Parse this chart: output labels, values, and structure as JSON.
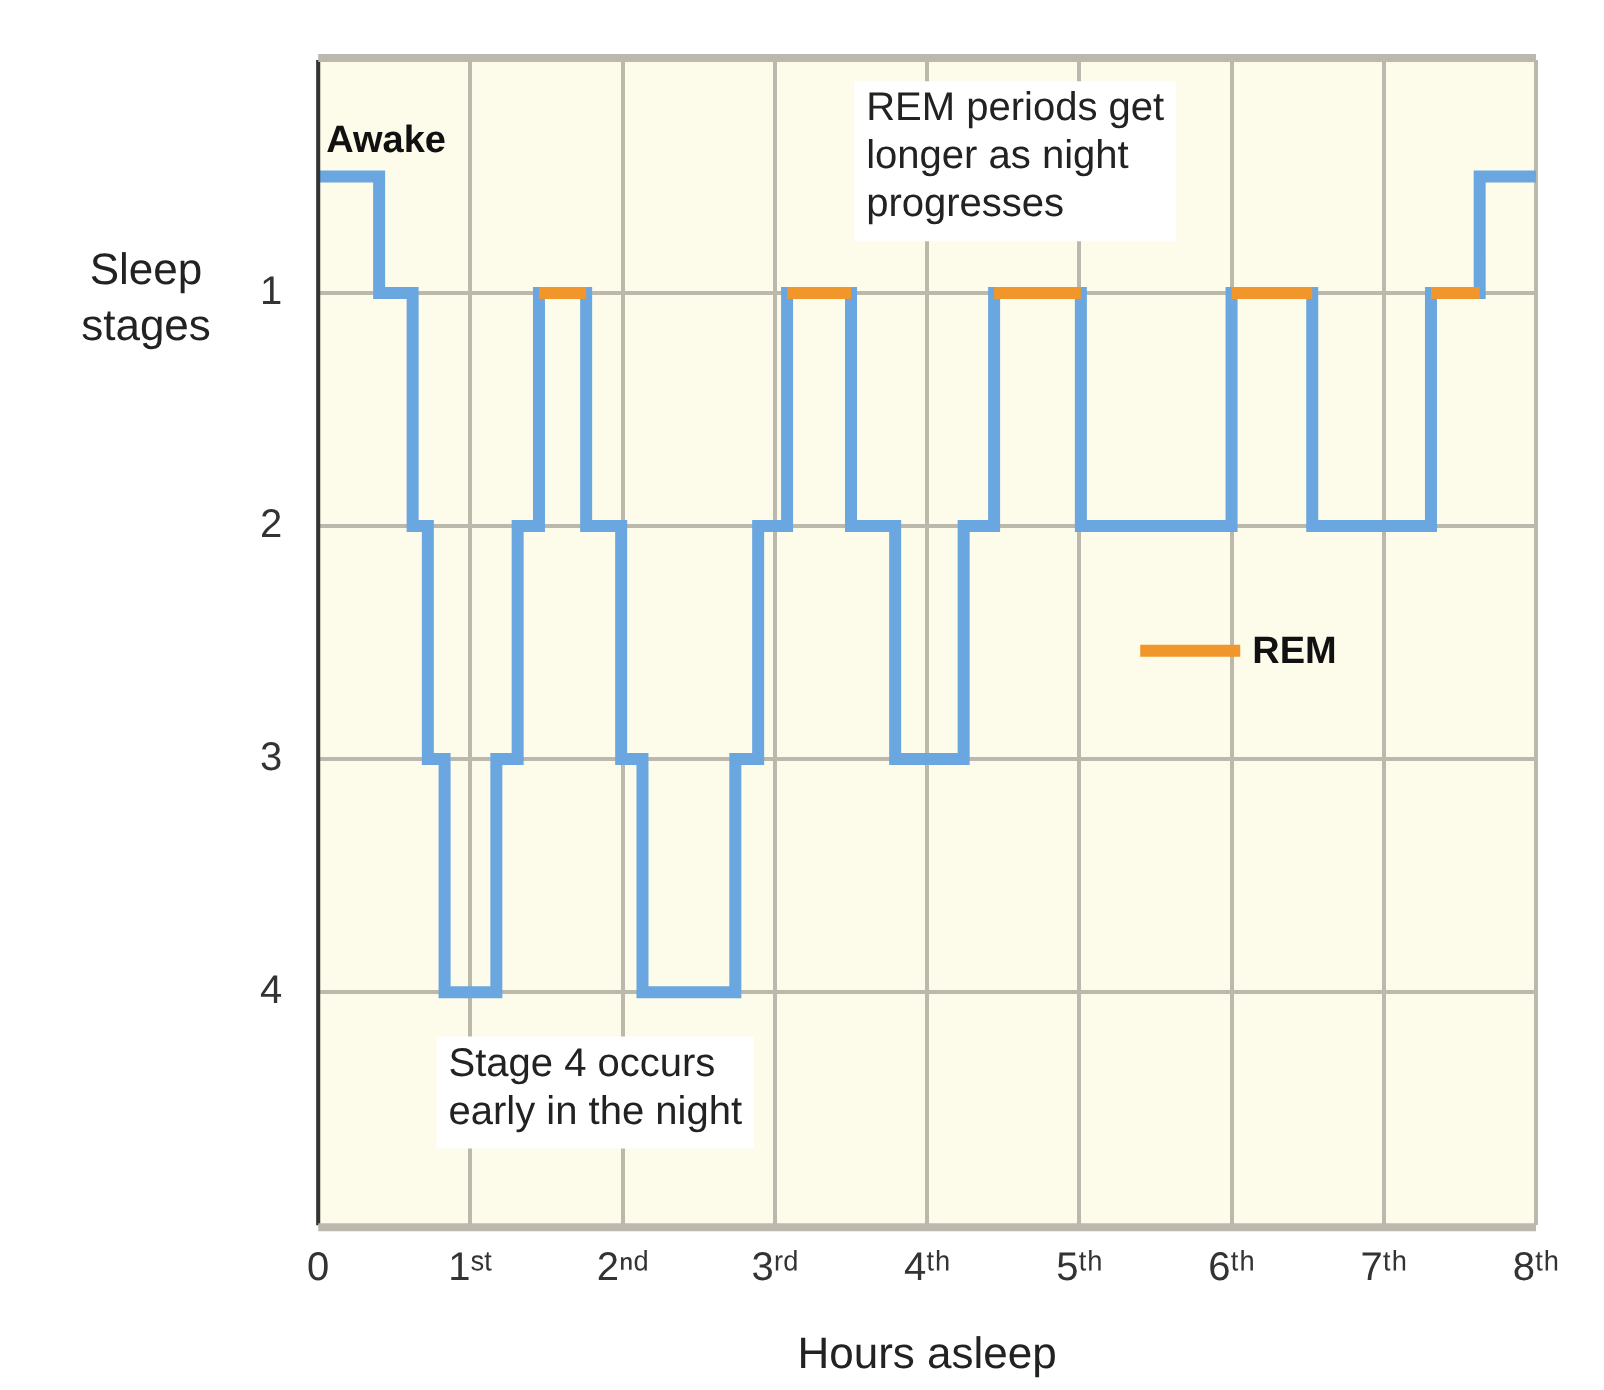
{
  "chart_data": {
    "type": "step",
    "xlabel": "Hours asleep",
    "ylabel": "Sleep stages",
    "xlim": [
      0,
      8
    ],
    "xticks": [
      0,
      {
        "value": 1,
        "label": "1ˢᵗ"
      },
      {
        "value": 2,
        "label": "2ⁿᵈ"
      },
      {
        "value": 3,
        "label": "3ʳᵈ"
      },
      {
        "value": 4,
        "label": "4ᵗʰ"
      },
      {
        "value": 5,
        "label": "5ᵗʰ"
      },
      {
        "value": 6,
        "label": "6ᵗʰ"
      },
      {
        "value": 7,
        "label": "7ᵗʰ"
      },
      {
        "value": 8,
        "label": "8ᵗʰ"
      }
    ],
    "ylim": [
      5,
      0
    ],
    "yticks": [
      1,
      2,
      3,
      4
    ],
    "grid": true,
    "legend": "right",
    "line_style": "solid",
    "marker": "none",
    "series": [
      {
        "color": "#6aa6e0",
        "x": [
          0,
          0.4,
          0.62,
          0.72,
          0.83,
          1.17,
          1.31,
          1.45,
          1.76,
          1.99,
          2.13,
          2.74,
          2.89,
          3.08,
          3.5,
          3.79,
          4.24,
          4.44,
          5.01,
          6,
          6.53,
          7.31,
          7.63,
          8
        ],
        "values": [
          0.5,
          1,
          2,
          3,
          4,
          3,
          2,
          1,
          2,
          3,
          4,
          3,
          2,
          1,
          2,
          3,
          2,
          1,
          2,
          1,
          2,
          1,
          0.5,
          0.5
        ]
      },
      {
        "type": "line",
        "name": "REM",
        "color": "#f0962a",
        "x": [
          1.45,
          1.76,
          2.4,
          3.08,
          3.5,
          4,
          4.44,
          5.01,
          5.5,
          6,
          6.53,
          7,
          7.31,
          7.63
        ],
        "values": [
          1,
          1,
          null,
          1,
          1,
          null,
          1,
          1,
          null,
          1,
          1,
          null,
          1,
          1
        ]
      }
    ],
    "annotations": [
      "REM periods get longer as night progresses",
      "Stage 4 occurs early in the night",
      {
        "text": "Awake",
        "x": 0,
        "y": 0.5
      }
    ]
  }
}
